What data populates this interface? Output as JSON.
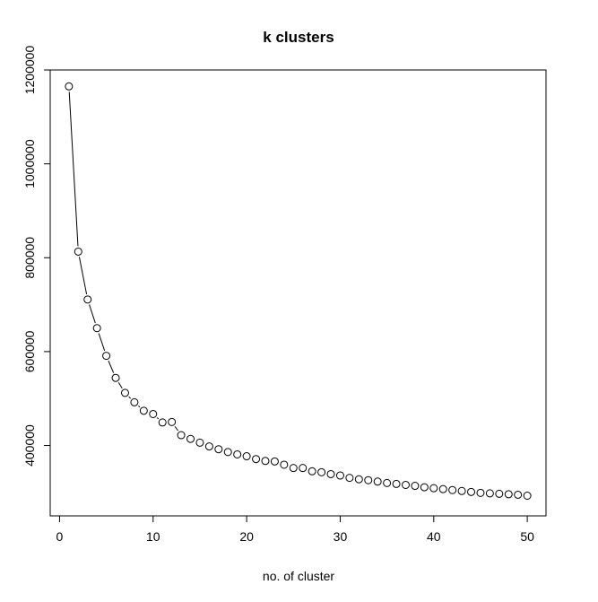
{
  "chart_data": {
    "type": "line",
    "title": "k clusters",
    "xlabel": "no. of cluster",
    "ylabel": "",
    "xlim": [
      -1,
      52
    ],
    "ylim": [
      250000,
      1200000
    ],
    "xticks": [
      0,
      10,
      20,
      30,
      40,
      50
    ],
    "yticks": [
      400000,
      600000,
      800000,
      1000000,
      1200000
    ],
    "grid": false,
    "series": [
      {
        "x": [
          1,
          2,
          3,
          4,
          5,
          6,
          7,
          8,
          9,
          10,
          11,
          12,
          13,
          14,
          15,
          16,
          17,
          18,
          19,
          20,
          21,
          22,
          23,
          24,
          25,
          26,
          27,
          28,
          29,
          30,
          31,
          32,
          33,
          34,
          35,
          36,
          37,
          38,
          39,
          40,
          41,
          42,
          43,
          44,
          45,
          46,
          47,
          48,
          49,
          50
        ],
        "values": [
          1165000,
          813000,
          711000,
          650000,
          591000,
          544000,
          512000,
          492000,
          474000,
          467000,
          449000,
          450000,
          422000,
          414000,
          406000,
          398000,
          392000,
          386000,
          381000,
          377000,
          371000,
          367000,
          366000,
          359000,
          352000,
          352000,
          345000,
          343000,
          339000,
          336000,
          331000,
          328000,
          326000,
          323000,
          320000,
          318000,
          316000,
          314000,
          311000,
          309000,
          307000,
          305000,
          303000,
          301000,
          299000,
          298000,
          297000,
          296000,
          295000,
          293000
        ]
      }
    ]
  }
}
